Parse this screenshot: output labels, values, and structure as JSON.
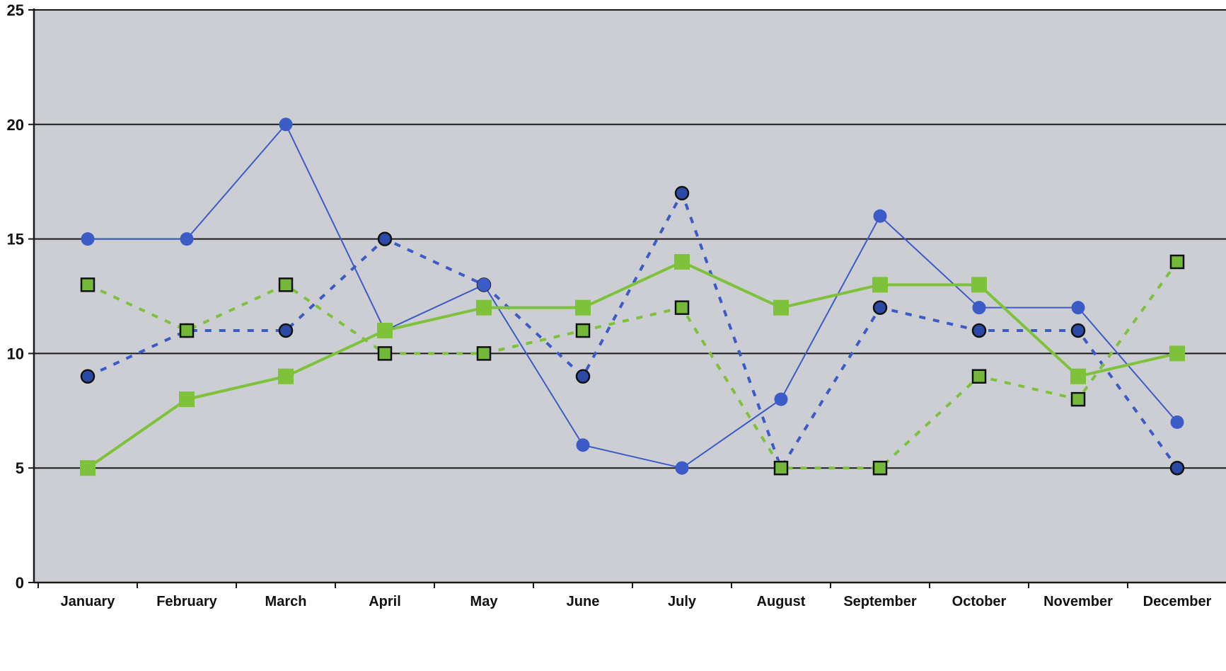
{
  "chart_data": {
    "type": "line",
    "title": "",
    "xlabel": "",
    "ylabel": "",
    "categories": [
      "January",
      "February",
      "March",
      "April",
      "May",
      "June",
      "July",
      "August",
      "September",
      "October",
      "November",
      "December"
    ],
    "ylim": [
      0,
      25
    ],
    "yticks": [
      0,
      5,
      10,
      15,
      20,
      25
    ],
    "grid": true,
    "legend": "none",
    "background_color": "#cdced3",
    "series": [
      {
        "line_color": "#3b5bc7",
        "marker_color": "#3b5bc7",
        "marker": "circle",
        "line_style": "solid",
        "values": [
          15,
          15,
          20,
          11,
          13,
          6,
          5,
          8,
          16,
          12,
          12,
          7
        ]
      },
      {
        "line_color": "#3b5bc7",
        "marker_color": "#2b4aa8",
        "marker": "circle-outlined",
        "line_style": "dashed",
        "values": [
          9,
          11,
          11,
          15,
          13,
          9,
          17,
          5,
          12,
          11,
          11,
          5
        ]
      },
      {
        "line_color": "#7ec13b",
        "marker_color": "#7ec13b",
        "marker": "square",
        "line_style": "solid",
        "values": [
          5,
          8,
          9,
          11,
          12,
          12,
          14,
          12,
          13,
          13,
          9,
          10
        ]
      },
      {
        "line_color": "#7ec13b",
        "marker_color": "#74b83a",
        "marker": "square-outlined",
        "line_style": "dashed",
        "values": [
          13,
          11,
          13,
          10,
          10,
          11,
          12,
          5,
          5,
          9,
          8,
          14
        ]
      }
    ]
  }
}
